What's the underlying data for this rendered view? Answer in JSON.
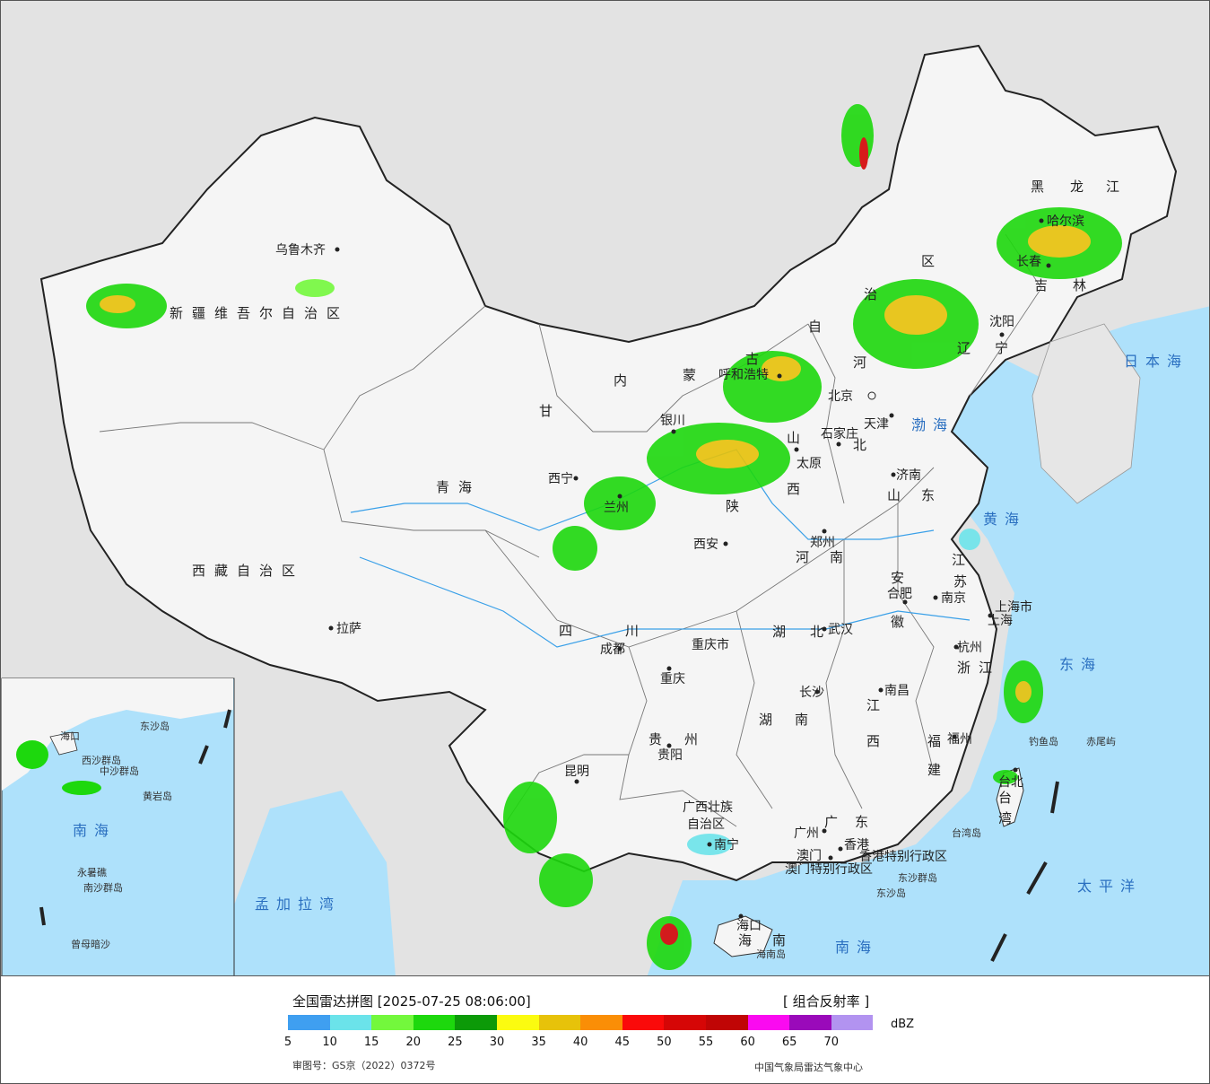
{
  "legend": {
    "title": "全国雷达拼图 [2025-07-25 08:06:00]",
    "product": "[ 组合反射率 ]",
    "unit": "dBZ",
    "approval": "审图号：GS京（2022）0372号",
    "source": "中国气象局雷达气象中心",
    "colors": [
      "#3f9ff0",
      "#6be3ea",
      "#73f83c",
      "#1dd80d",
      "#0c9a08",
      "#fbfb10",
      "#e7c20a",
      "#fa8e06",
      "#fa0a0a",
      "#d60606",
      "#c00505",
      "#fa0af0",
      "#9a0aba",
      "#b293f0"
    ],
    "ticks": [
      "5",
      "10",
      "15",
      "20",
      "25",
      "30",
      "35",
      "40",
      "45",
      "50",
      "55",
      "60",
      "65",
      "70"
    ]
  },
  "map": {
    "provinces": [
      "新疆维吾尔自治区",
      "西藏自治区",
      "青海",
      "甘",
      "内",
      "蒙",
      "古",
      "自",
      "治",
      "区",
      "黑",
      "龙",
      "江",
      "吉",
      "林",
      "辽",
      "宁",
      "河",
      "北",
      "山",
      "西",
      "陕",
      "四",
      "川",
      "重庆市",
      "湖",
      "北",
      "湖",
      "南",
      "贵",
      "州",
      "广西壮族",
      "自治区",
      "广",
      "东",
      "江",
      "西",
      "福",
      "建",
      "安",
      "徽",
      "江",
      "苏",
      "浙",
      "江",
      "河",
      "南",
      "山",
      "东",
      "海",
      "南",
      "台",
      "湾",
      "上海市"
    ],
    "cities": [
      "乌鲁木齐",
      "拉萨",
      "西宁",
      "兰州",
      "银川",
      "呼和浩特",
      "北京",
      "天津",
      "石家庄",
      "太原",
      "西安",
      "郑州",
      "济南",
      "南京",
      "上海",
      "合肥",
      "杭州",
      "武汉",
      "长沙",
      "南昌",
      "福州",
      "台北",
      "成都",
      "重庆",
      "贵阳",
      "昆明",
      "南宁",
      "广州",
      "香港",
      "澳门",
      "海口",
      "沈阳",
      "长春",
      "哈尔滨"
    ],
    "seas": [
      "黄海",
      "渤海",
      "东海",
      "南海",
      "太平洋",
      "日本海",
      "孟加拉湾"
    ],
    "islands": [
      "钓鱼岛",
      "赤尾屿",
      "台湾岛",
      "东沙群岛",
      "东沙岛",
      "海南岛"
    ],
    "special": [
      "香港特别行政区",
      "澳门特别行政区"
    ],
    "inset": [
      "南海",
      "西沙群岛",
      "中沙群岛",
      "南沙群岛",
      "永暑礁",
      "曾母暗沙",
      "黄岩岛",
      "东沙岛",
      "海口"
    ]
  }
}
